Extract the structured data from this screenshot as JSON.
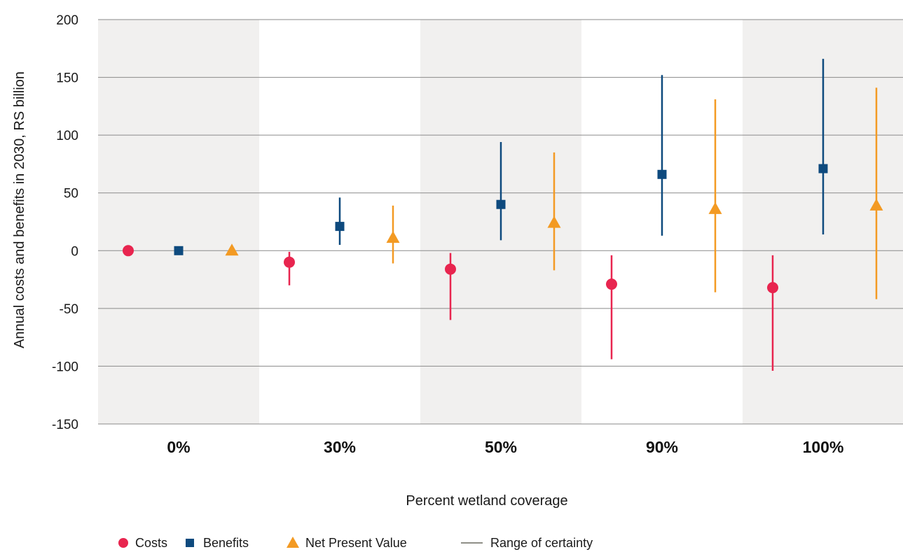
{
  "chart_data": {
    "type": "scatter",
    "title": "",
    "xlabel": "Percent wetland coverage",
    "ylabel": "Annual costs and benefits in 2030, RS billion",
    "categories": [
      "0%",
      "30%",
      "50%",
      "90%",
      "100%"
    ],
    "ylim": [
      -150,
      200
    ],
    "yticks": [
      200,
      150,
      100,
      50,
      0,
      -50,
      -100,
      -150
    ],
    "ytick_labels": [
      "200",
      "150",
      "100",
      "50",
      "0",
      "-50",
      "-100",
      "-150"
    ],
    "grid": "horizontal",
    "alternating_band_color": "#f1f0ef",
    "legend_position": "bottom-left",
    "series": [
      {
        "name": "Costs",
        "marker": "circle",
        "color": "#e8254f",
        "values": [
          0,
          -10,
          -16,
          -29,
          -32
        ],
        "low": [
          0,
          -30,
          -60,
          -94,
          -104
        ],
        "high": [
          0,
          -1,
          -2,
          -4,
          -4
        ]
      },
      {
        "name": "Benefits",
        "marker": "square",
        "color": "#0e4a7e",
        "values": [
          0,
          21,
          40,
          66,
          71
        ],
        "low": [
          0,
          5,
          9,
          13,
          14
        ],
        "high": [
          0,
          46,
          94,
          152,
          166
        ]
      },
      {
        "name": "Net Present Value",
        "marker": "triangle",
        "color": "#f39a23",
        "values": [
          0,
          11,
          24,
          36,
          39
        ],
        "low": [
          0,
          -11,
          -17,
          -36,
          -42
        ],
        "high": [
          0,
          39,
          85,
          131,
          141
        ]
      }
    ],
    "range_legend": {
      "label": "Range of certainty",
      "color": "#8f8f87"
    }
  }
}
